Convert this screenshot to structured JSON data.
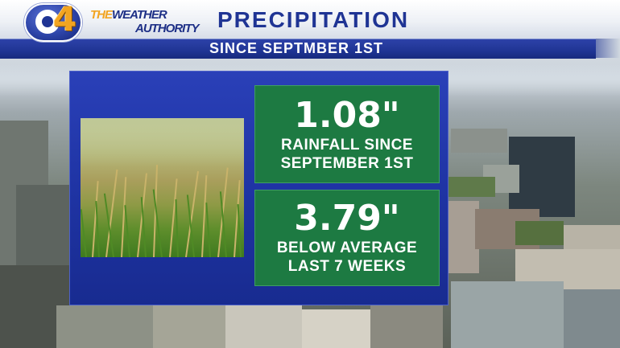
{
  "header": {
    "logo_number": "4",
    "brand_line1_the": "THE",
    "brand_line1_weather": "WEATHER",
    "brand_line2": "AUTHORITY",
    "title": "PRECIPITATION",
    "subtitle": "SINCE SEPTMBER 1ST"
  },
  "stats": [
    {
      "value": "1.08\"",
      "line1": "RAINFALL SINCE",
      "line2": "SEPTEMBER 1ST"
    },
    {
      "value": "3.79\"",
      "line1": "BELOW AVERAGE",
      "line2": "LAST 7 WEEKS"
    }
  ],
  "colors": {
    "brand_blue": "#1f3494",
    "logo_orange": "#f2a421",
    "stat_green": "#1d7a42",
    "panel_blue": "#2a40b8"
  },
  "icons": {
    "logo": "cbs-eye-icon"
  }
}
